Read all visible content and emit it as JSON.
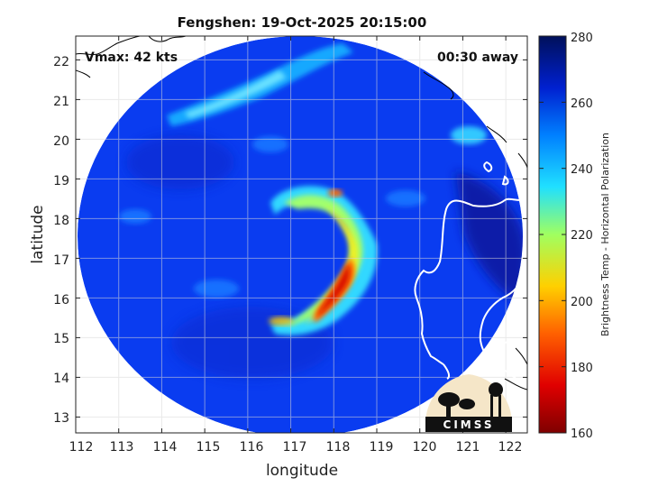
{
  "title": "Fengshen: 19-Oct-2025 20:15:00",
  "annotations": {
    "vmax": "Vmax: 42 kts",
    "away": "00:30 away"
  },
  "axes": {
    "xlabel": "longitude",
    "ylabel": "latitude",
    "xlim": [
      112,
      122.5
    ],
    "ylim": [
      12.6,
      22.6
    ],
    "xticks": [
      "112",
      "113",
      "114",
      "115",
      "116",
      "117",
      "118",
      "119",
      "120",
      "121",
      "122"
    ],
    "yticks": [
      "13",
      "14",
      "15",
      "16",
      "17",
      "18",
      "19",
      "20",
      "21",
      "22"
    ],
    "grid": true
  },
  "colorbar": {
    "label": "Brightness Temp - Horizontal Polarization",
    "ticks": [
      "160",
      "180",
      "200",
      "220",
      "240",
      "260",
      "280"
    ],
    "range": [
      160,
      280
    ],
    "colormap": "jet"
  },
  "logo": {
    "text": "CIMSS"
  },
  "colors": {
    "background_scene": "#0a3cf0",
    "coastline": "#ffffff",
    "logo_bg": "#f5e6c8"
  }
}
